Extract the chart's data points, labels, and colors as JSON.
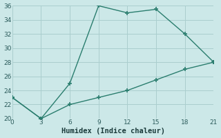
{
  "x": [
    0,
    3,
    6,
    9,
    12,
    15,
    18,
    21
  ],
  "y_upper": [
    23,
    20,
    25,
    36,
    35,
    35.5,
    32,
    28
  ],
  "y_lower": [
    23,
    20,
    22,
    23,
    24,
    25.5,
    27,
    28
  ],
  "line_color": "#2a7d6e",
  "bg_color": "#cce8e8",
  "grid_color": "#aacece",
  "xlabel": "Humidex (Indice chaleur)",
  "xlim": [
    0,
    21
  ],
  "ylim": [
    20,
    36
  ],
  "xticks": [
    0,
    3,
    6,
    9,
    12,
    15,
    18,
    21
  ],
  "yticks": [
    20,
    22,
    24,
    26,
    28,
    30,
    32,
    34,
    36
  ],
  "tick_fontsize": 6.5,
  "xlabel_fontsize": 7.5
}
